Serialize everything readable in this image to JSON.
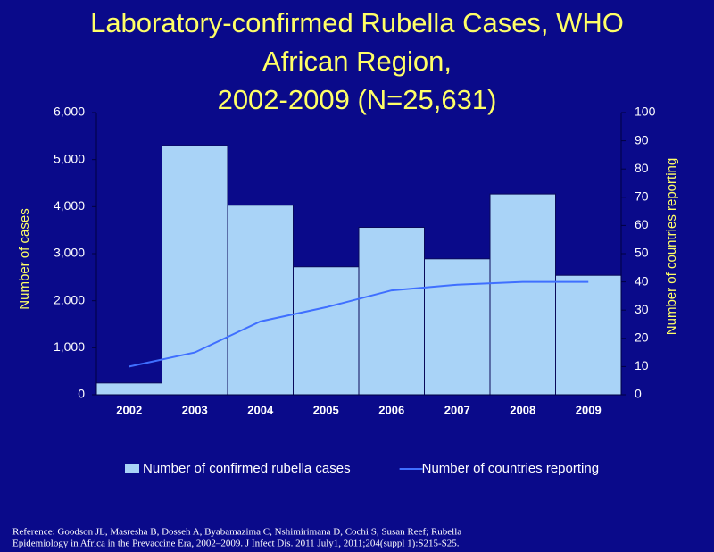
{
  "chart_data": {
    "type": "bar",
    "title": [
      "Laboratory-confirmed Rubella Cases, WHO",
      "African Region,",
      "2002-2009 (N=25,631)"
    ],
    "y_label": "Number of cases",
    "y2_label": "Number of countries reporting",
    "categories": [
      "2002",
      "2003",
      "2004",
      "2005",
      "2006",
      "2007",
      "2008",
      "2009"
    ],
    "series": [
      {
        "name": "Number of confirmed rubella cases",
        "type": "bar",
        "color": "#a9d3f7",
        "values": [
          250,
          5300,
          4030,
          2720,
          3560,
          2890,
          4270,
          2540
        ]
      },
      {
        "name": "Number of countries reporting",
        "type": "line",
        "color": "#3f6fff",
        "axis": "y2",
        "values": [
          10,
          15,
          26,
          31,
          37,
          39,
          40,
          40
        ]
      }
    ],
    "ylim": [
      0,
      6000
    ],
    "yticks": [
      0,
      {
        "value": 1000,
        "label": "1,000"
      },
      {
        "value": 2000,
        "label": "2,000"
      },
      {
        "value": 3000,
        "label": "3,000"
      },
      {
        "value": 4000,
        "label": "4,000"
      },
      {
        "value": 5000,
        "label": "5,000"
      },
      {
        "value": 6000,
        "label": "6,000"
      }
    ],
    "y2lim": [
      0,
      100
    ],
    "y2ticks": [
      0,
      10,
      20,
      30,
      40,
      50,
      60,
      70,
      80,
      90,
      100
    ],
    "grid": false,
    "legend": "bottom",
    "reference": [
      "Reference:  Goodson JL, Masresha B, Dosseh A, Byabamazima C, Nshimirimana D, Cochi S, Susan Reef; Rubella",
      "Epidemiology in Africa in the Prevaccine Era, 2002–2009. J Infect Dis. 2011 July1, 2011;204(suppl 1):S215-S25."
    ]
  }
}
